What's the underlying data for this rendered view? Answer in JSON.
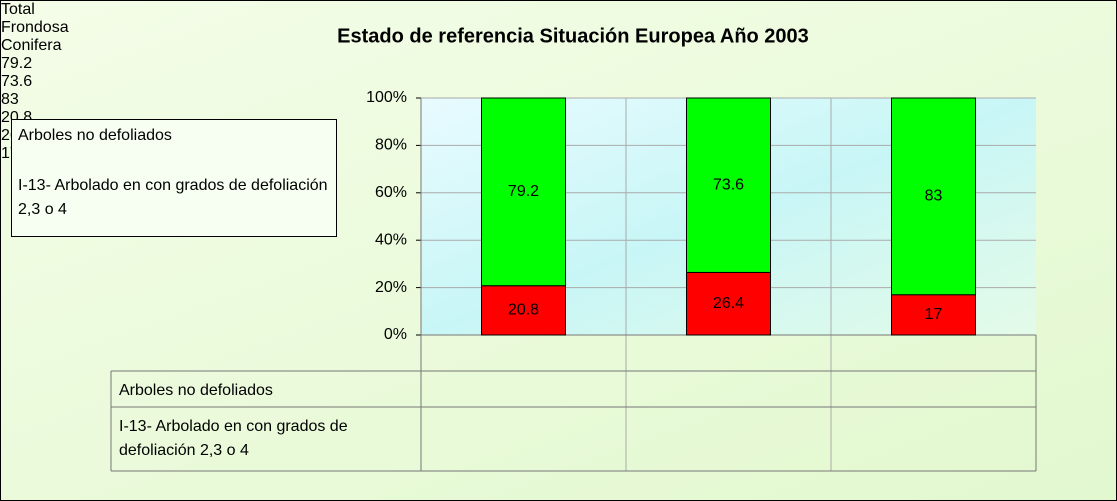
{
  "chart_data": {
    "type": "stacked_bar_100",
    "title": "Estado de referencia Situación Europea Año 2003",
    "categories": [
      "Total",
      "Frondosa",
      "Conifera"
    ],
    "series": [
      {
        "name": "Arboles no defoliados",
        "color": "#00ff00",
        "values": [
          79.2,
          73.6,
          83
        ]
      },
      {
        "name": "I-13- Arbolado en con grados de defoliación 2,3 o 4",
        "color": "#ff0000",
        "values": [
          20.8,
          26.4,
          17
        ]
      }
    ],
    "ylim": [
      0,
      100
    ],
    "yticks": [
      {
        "value": 0,
        "label": "0%"
      },
      {
        "value": 20,
        "label": "20%"
      },
      {
        "value": 40,
        "label": "40%"
      },
      {
        "value": 60,
        "label": "60%"
      },
      {
        "value": 80,
        "label": "80%"
      },
      {
        "value": 100,
        "label": "100%"
      }
    ],
    "grid": true,
    "legend": "left",
    "data_table": true
  }
}
